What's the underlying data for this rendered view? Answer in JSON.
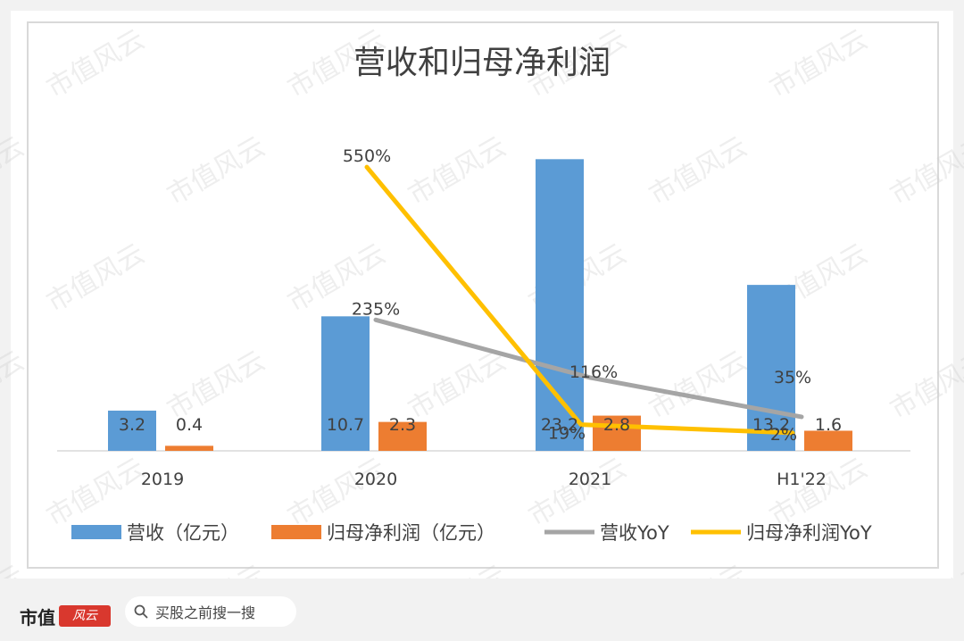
{
  "watermark": "市值风云",
  "footer": {
    "brand": "市值",
    "brand_logo_text": "风云",
    "search_placeholder": "买股之前搜一搜"
  },
  "colors": {
    "revenue": "#5b9bd5",
    "profit": "#ed7d31",
    "revenue_yoy": "#a5a5a5",
    "profit_yoy": "#ffc000",
    "text": "#404040",
    "axis": "#d9d9d9"
  },
  "chart_data": {
    "type": "bar",
    "title": "营收和归母净利润",
    "categories": [
      "2019",
      "2020",
      "2021",
      "H1'22"
    ],
    "series": [
      {
        "name": "营收（亿元）",
        "kind": "bar",
        "axis": "left",
        "values": [
          3.2,
          10.7,
          23.2,
          13.2
        ],
        "labels": [
          "3.2",
          "10.7",
          "23.2",
          "13.2"
        ]
      },
      {
        "name": "归母净利润（亿元）",
        "kind": "bar",
        "axis": "left",
        "values": [
          0.4,
          2.3,
          2.8,
          1.6
        ],
        "labels": [
          "0.4",
          "2.3",
          "2.8",
          "1.6"
        ]
      },
      {
        "name": "营收YoY",
        "kind": "line",
        "axis": "right",
        "values": [
          null,
          235,
          116,
          35
        ],
        "labels": [
          "",
          "235%",
          "116%",
          "35%"
        ]
      },
      {
        "name": "归母净利润YoY",
        "kind": "line",
        "axis": "right",
        "values": [
          null,
          550,
          19,
          2
        ],
        "labels": [
          "",
          "550%",
          "19%",
          "2%"
        ]
      }
    ],
    "left_axis_range": [
      0,
      24.5
    ],
    "right_axis_range": [
      -35,
      600
    ],
    "axes_visible": false,
    "grid": false,
    "legend_position": "bottom"
  }
}
